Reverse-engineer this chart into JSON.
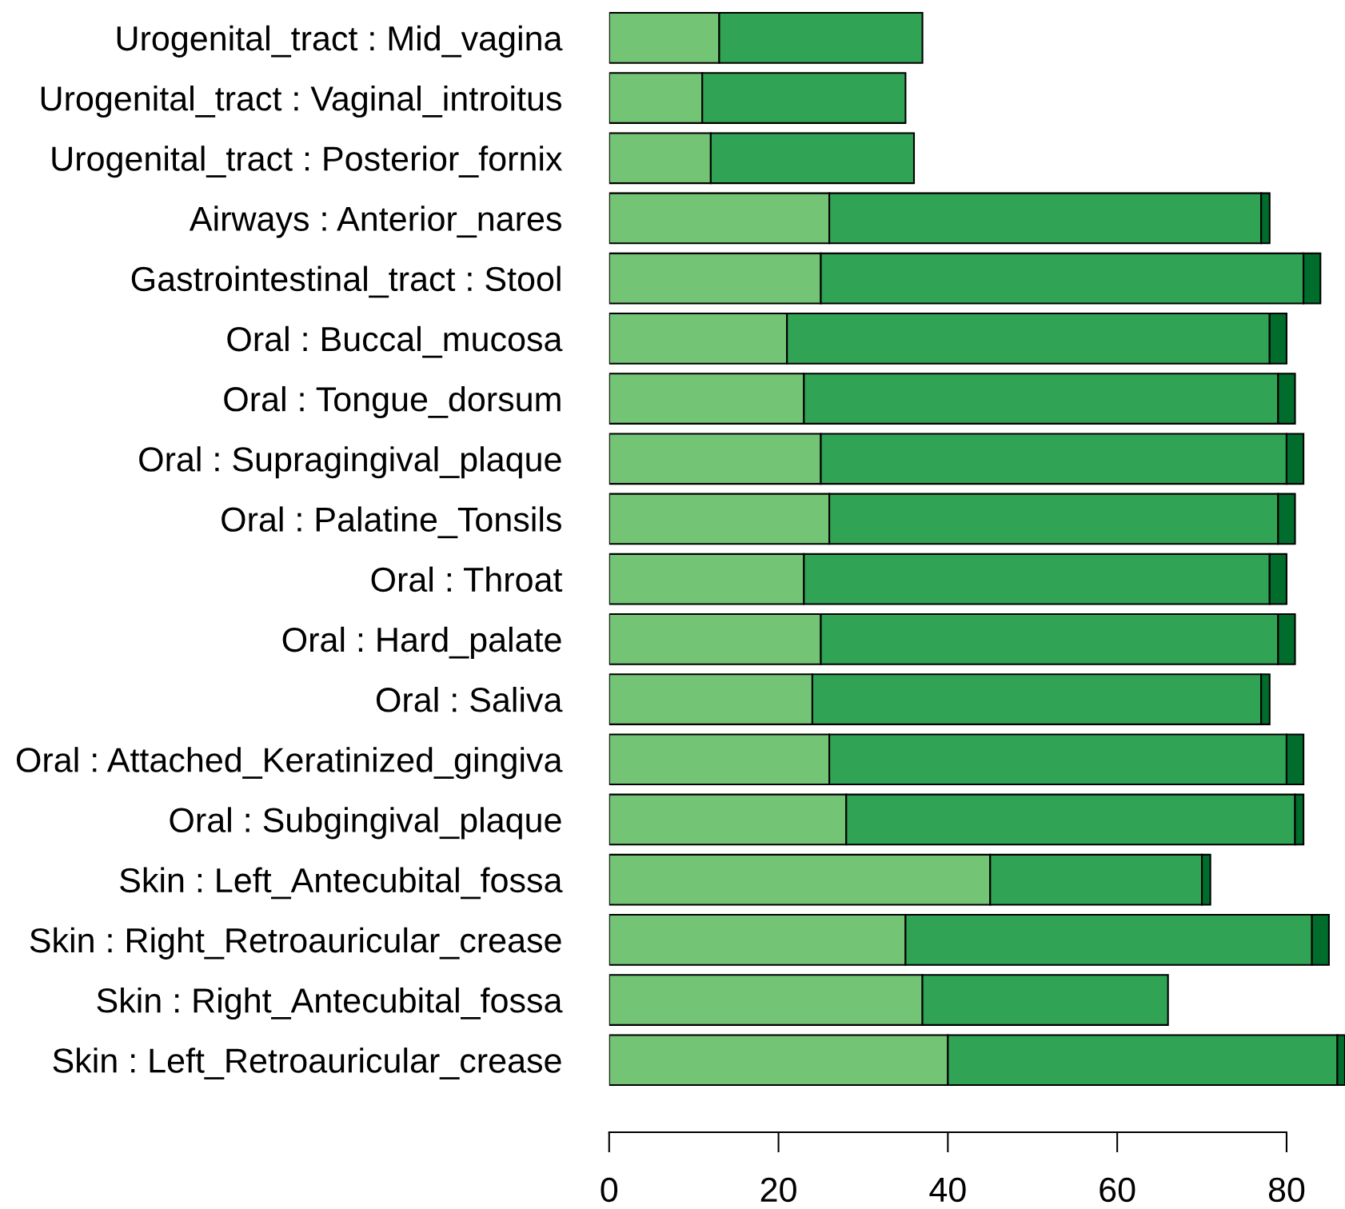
{
  "chart_data": {
    "type": "bar",
    "orientation": "horizontal",
    "stacked": true,
    "categories": [
      "Urogenital_tract : Mid_vagina",
      "Urogenital_tract : Vaginal_introitus",
      "Urogenital_tract : Posterior_fornix",
      "Airways : Anterior_nares",
      "Gastrointestinal_tract : Stool",
      "Oral : Buccal_mucosa",
      "Oral : Tongue_dorsum",
      "Oral : Supragingival_plaque",
      "Oral : Palatine_Tonsils",
      "Oral : Throat",
      "Oral : Hard_palate",
      "Oral : Saliva",
      "Oral : Attached_Keratinized_gingiva",
      "Oral : Subgingival_plaque",
      "Skin : Left_Antecubital_fossa",
      "Skin : Right_Retroauricular_crease",
      "Skin : Right_Antecubital_fossa",
      "Skin : Left_Retroauricular_crease"
    ],
    "series": [
      {
        "color": "#74c476",
        "values": [
          13,
          11,
          12,
          26,
          25,
          21,
          23,
          25,
          26,
          23,
          25,
          24,
          26,
          28,
          45,
          35,
          37,
          40
        ]
      },
      {
        "color": "#31a354",
        "values": [
          24,
          24,
          24,
          51,
          57,
          57,
          56,
          55,
          53,
          55,
          54,
          53,
          54,
          53,
          25,
          48,
          29,
          46
        ]
      },
      {
        "color": "#006d2c",
        "values": [
          0,
          0,
          0,
          1,
          2,
          2,
          2,
          2,
          2,
          2,
          2,
          1,
          2,
          1,
          1,
          2,
          0,
          0.9
        ]
      }
    ],
    "xlim": [
      0,
      86.9
    ],
    "xticks": [
      0,
      20,
      40,
      60,
      80
    ],
    "grid": false
  }
}
